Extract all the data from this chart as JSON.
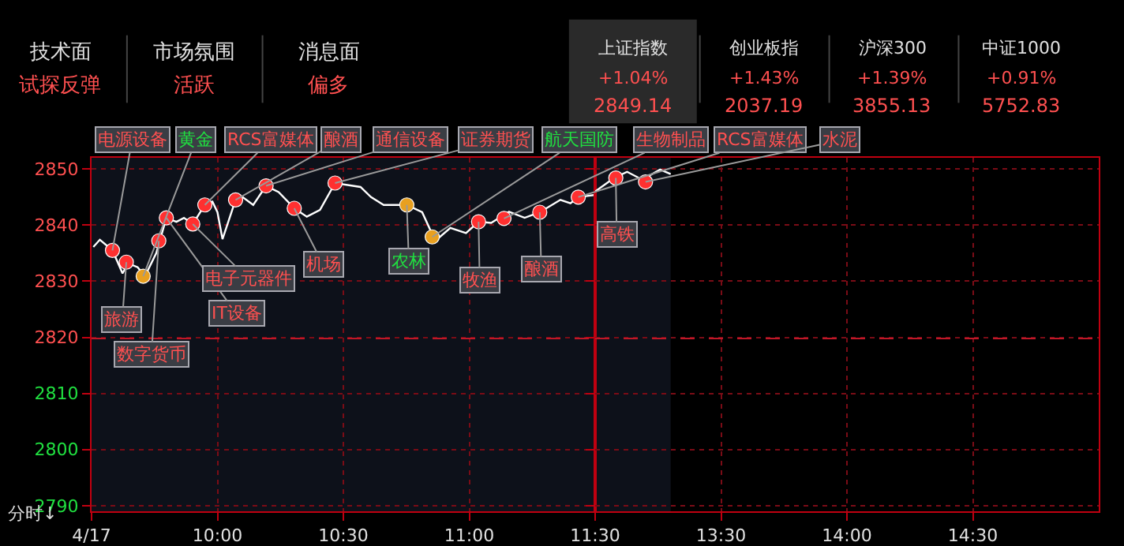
{
  "chart_data": [
    {
      "type": "other",
      "annotations": [
        "技术面",
        "试探反弹",
        "市场氛围",
        "活跃",
        "消息面",
        "偏多",
        "上证指数",
        "+1.04%",
        "2849.14",
        "创业板指",
        "+1.43%",
        "2037.19",
        "沪深300",
        "+1.39%",
        "3855.13",
        "中证1000",
        "+0.91%",
        "5752.83"
      ]
    },
    {
      "type": "line",
      "xlim": [
        9.5,
        11.5
      ],
      "ylim": [
        2789,
        2852
      ],
      "xticks": [
        {
          "value": 9.5,
          "label": "4/17"
        },
        {
          "value": 10,
          "label": "10:00"
        },
        {
          "value": 10.5,
          "label": "10:30"
        },
        {
          "value": 11,
          "label": "11:00"
        },
        {
          "value": 11.5,
          "label": "11:30"
        }
      ],
      "yticks": [
        2790,
        2800,
        2810,
        2820,
        2830,
        2840,
        2850
      ],
      "grid": true,
      "ref_lines": [
        {
          "axis": "y",
          "value": 2819.8,
          "color": "#c01828",
          "line_style": "dashed"
        }
      ],
      "bands": [
        {
          "axis": "x",
          "from": 9.5,
          "to": 11.5,
          "color": "#0d111a"
        }
      ],
      "series": [
        {
          "color": "#ffffff",
          "marker": "none",
          "x": [
            9.507,
            9.533,
            9.583,
            9.623,
            9.645,
            9.683,
            9.712,
            9.757,
            9.797,
            9.837,
            9.867,
            9.902,
            9.95,
            9.98,
            10,
            10.02,
            10.072,
            10.1,
            10.142,
            10.193,
            10.243,
            10.305,
            10.355,
            10.407,
            10.467,
            10.568,
            10.61,
            10.66,
            10.752,
            10.813,
            10.865,
            10.925,
            10.987,
            11.037,
            11.087,
            11.158,
            11.22,
            11.28,
            11.362,
            11.402,
            11.433,
            11.5
          ],
          "values": [
            2836.1,
            2837.4,
            2835.5,
            2831.4,
            2833.2,
            2832.5,
            2830.9,
            2835,
            2841.3,
            2840.6,
            2841.3,
            2840.2,
            2843.6,
            2844.2,
            2842.3,
            2837.5,
            2844.5,
            2845,
            2843.6,
            2847,
            2845.9,
            2843,
            2841.5,
            2842.7,
            2847.5,
            2846.8,
            2845,
            2843.6,
            2843.6,
            2842.3,
            2837.2,
            2839.5,
            2838.6,
            2840.6,
            2840.4,
            2842.4,
            2841.3,
            2842.3,
            2844.5,
            2843.9,
            2845,
            2845.4
          ]
        },
        {
          "type": "scatter",
          "marker": "circle",
          "x": [
            9.583,
            9.638,
            9.705,
            9.767,
            9.797,
            9.902,
            9.95,
            10.072,
            10.193,
            10.305,
            10.467,
            10.752,
            10.853,
            11.037,
            11.138,
            11.28,
            11.433
          ],
          "values": [
            2835.5,
            2833.4,
            2830.9,
            2837.2,
            2841.3,
            2840.2,
            2843.6,
            2844.5,
            2847,
            2843,
            2847.5,
            2843.6,
            2837.9,
            2840.6,
            2841.2,
            2842.3,
            2845
          ],
          "colors": [
            "#ff3030",
            "#ff3030",
            "#e8a020",
            "#ff3030",
            "#ff3030",
            "#ff3030",
            "#ff3030",
            "#ff3030",
            "#ff3030",
            "#ff3030",
            "#ff3030",
            "#e8a020",
            "#e8a020",
            "#ff3030",
            "#ff3030",
            "#ff3030",
            "#ff3030"
          ]
        }
      ],
      "annotations": [
        {
          "text": "电源设备",
          "x": 9.583,
          "y": 2835.5
        },
        {
          "text": "旅游",
          "x": 9.638,
          "y": 2833.4
        },
        {
          "text": "黄金",
          "x": 9.705,
          "y": 2830.9
        },
        {
          "text": "数字货币",
          "x": 9.767,
          "y": 2837.2
        },
        {
          "text": "IT设备",
          "x": 9.797,
          "y": 2841.3
        },
        {
          "text": "电子元器件",
          "x": 9.902,
          "y": 2840.2
        },
        {
          "text": "RCS富媒体",
          "x": 9.95,
          "y": 2843.6
        },
        {
          "text": "酿酒",
          "x": 10.072,
          "y": 2844.5
        },
        {
          "text": "通信设备",
          "x": 10.193,
          "y": 2847
        },
        {
          "text": "机场",
          "x": 10.305,
          "y": 2843
        },
        {
          "text": "证券期货",
          "x": 10.467,
          "y": 2847.5
        },
        {
          "text": "农林",
          "x": 10.752,
          "y": 2843.6
        },
        {
          "text": "航天国防",
          "x": 10.853,
          "y": 2837.9
        },
        {
          "text": "牧渔",
          "x": 11.037,
          "y": 2840.6
        },
        {
          "text": "生物制品",
          "x": 11.138,
          "y": 2841.2
        },
        {
          "text": "酿酒",
          "x": 11.28,
          "y": 2842.3
        },
        {
          "text": "RCS富媒体",
          "x": 11.433,
          "y": 2845
        },
        "分时↓"
      ]
    },
    {
      "type": "line",
      "xlim": [
        13,
        15
      ],
      "ylim": [
        2789,
        2852
      ],
      "tick_labels": "x",
      "xticks": [
        {
          "value": 13.5,
          "label": "13:30"
        },
        {
          "value": 14,
          "label": "14:00"
        },
        {
          "value": 14.5,
          "label": "14:30"
        }
      ],
      "yticks": [
        2790,
        2800,
        2810,
        2820,
        2830,
        2840,
        2850
      ],
      "grid": true,
      "ref_lines": [
        {
          "axis": "y",
          "value": 2819.8,
          "color": "#c01828",
          "line_style": "dashed"
        }
      ],
      "bands": [
        {
          "axis": "x",
          "from": 13,
          "to": 13.3,
          "color": "#0d111a"
        }
      ],
      "series": [
        {
          "color": "#ffffff",
          "marker": "none",
          "x": [
            13,
            13.075,
            13.127,
            13.187,
            13.258,
            13.3
          ],
          "values": [
            2846,
            2848.4,
            2849.5,
            2848.1,
            2849.9,
            2849.1
          ]
        },
        {
          "type": "scatter",
          "marker": "circle",
          "x": [
            13.082,
            13.2
          ],
          "values": [
            2848.4,
            2847.7
          ],
          "colors": [
            "#ff3030",
            "#ff3030"
          ]
        }
      ],
      "annotations": [
        {
          "text": "高铁",
          "x": 13.082,
          "y": 2848.4
        },
        {
          "text": "水泥",
          "x": 13.2,
          "y": 2847.7
        }
      ]
    }
  ]
}
